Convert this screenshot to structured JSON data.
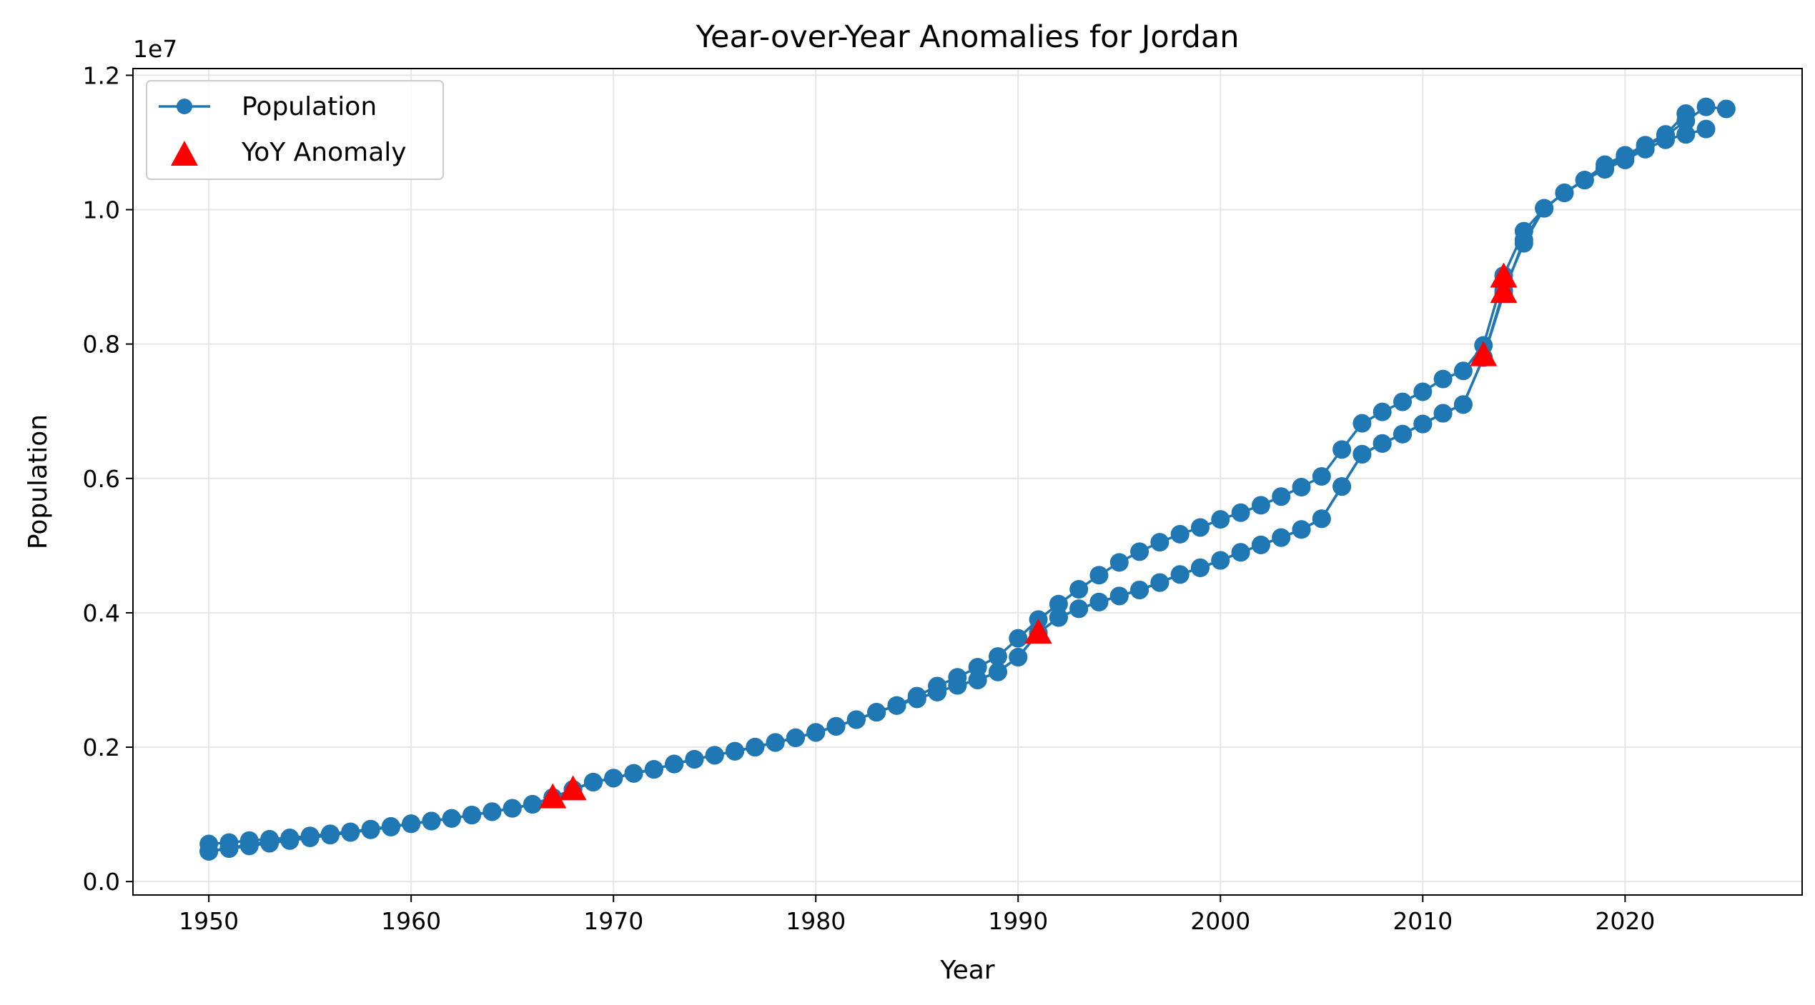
{
  "chart_data": {
    "type": "line",
    "title": "Year-over-Year Anomalies for Jordan",
    "xlabel": "Year",
    "ylabel": "Population",
    "y_offset_label": "1e7",
    "xlim": [
      1946.25,
      2028.75
    ],
    "ylim": [
      -0.02,
      1.21
    ],
    "x_ticks": [
      1950,
      1960,
      1970,
      1980,
      1990,
      2000,
      2010,
      2020
    ],
    "y_ticks": [
      0.0,
      0.2,
      0.4,
      0.6,
      0.8,
      1.0,
      1.2
    ],
    "y_tick_labels": [
      "0.0",
      "0.2",
      "0.4",
      "0.6",
      "0.8",
      "1.0",
      "1.2"
    ],
    "grid": true,
    "legend_position": "top-left",
    "colors": {
      "line": "#1f77b4",
      "anomaly": "#ff0000"
    },
    "series": [
      {
        "name": "Population",
        "kind": "line-marker",
        "segments": [
          {
            "x": [
              1950,
              1951,
              1952,
              1953,
              1954,
              1955,
              1956,
              1957,
              1958,
              1959,
              1960,
              1961,
              1962,
              1963,
              1964,
              1965,
              1966,
              1967,
              1968,
              1969,
              1970,
              1971,
              1972,
              1973,
              1974,
              1975,
              1976,
              1977,
              1978,
              1979,
              1980,
              1981,
              1982,
              1983,
              1984,
              1985,
              1986,
              1987,
              1988,
              1989,
              1990,
              1991,
              1992,
              1993,
              1994,
              1995,
              1996,
              1997,
              1998,
              1999,
              2000,
              2001,
              2002,
              2003,
              2004,
              2005,
              2006,
              2007,
              2008,
              2009,
              2010,
              2011,
              2012,
              2013,
              2014,
              2015,
              2016,
              2017,
              2018,
              2019,
              2020,
              2021,
              2022,
              2023,
              2024
            ],
            "y": [
              0.045,
              0.05,
              0.055,
              0.06,
              0.064,
              0.067,
              0.071,
              0.074,
              0.078,
              0.082,
              0.086,
              0.09,
              0.094,
              0.099,
              0.104,
              0.109,
              0.115,
              0.125,
              0.137,
              0.148,
              0.154,
              0.161,
              0.167,
              0.175,
              0.182,
              0.188,
              0.194,
              0.2,
              0.207,
              0.214,
              0.222,
              0.231,
              0.241,
              0.252,
              0.262,
              0.272,
              0.282,
              0.292,
              0.3,
              0.312,
              0.334,
              0.37,
              0.393,
              0.406,
              0.416,
              0.425,
              0.434,
              0.445,
              0.457,
              0.467,
              0.478,
              0.49,
              0.501,
              0.512,
              0.524,
              0.54,
              0.588,
              0.636,
              0.652,
              0.666,
              0.681,
              0.697,
              0.71,
              0.78,
              0.88,
              0.95,
              1.002,
              1.025,
              1.044,
              1.06,
              1.074,
              1.09,
              1.104,
              1.112,
              1.12
            ]
          },
          {
            "x": [
              1950,
              1951,
              1952,
              1953,
              1954,
              1955,
              1956,
              1957,
              1958,
              1959,
              1960,
              1961,
              1962,
              1963,
              1964,
              1965,
              1966,
              1967,
              1968,
              1969,
              1970,
              1971,
              1972,
              1973,
              1974,
              1975,
              1976,
              1977,
              1978,
              1979,
              1980,
              1981,
              1982,
              1983,
              1984,
              1985,
              1986,
              1987,
              1988,
              1989,
              1990,
              1991,
              1992,
              1993,
              1994,
              1995,
              1996,
              1997,
              1998,
              1999,
              2000,
              2001,
              2002,
              2003,
              2004,
              2005,
              2006,
              2007,
              2008,
              2009,
              2010,
              2011,
              2012,
              2013,
              2014,
              2015,
              2016,
              2017,
              2018,
              2019,
              2020,
              2021,
              2022,
              2023
            ],
            "y": [
              0.056,
              0.058,
              0.061,
              0.063,
              0.065,
              0.068,
              0.071,
              0.074,
              0.078,
              0.082,
              0.086,
              0.09,
              0.094,
              0.099,
              0.104,
              0.109,
              0.115,
              0.125,
              0.137,
              0.148,
              0.154,
              0.161,
              0.167,
              0.175,
              0.182,
              0.188,
              0.194,
              0.2,
              0.207,
              0.214,
              0.222,
              0.231,
              0.241,
              0.252,
              0.262,
              0.276,
              0.291,
              0.304,
              0.319,
              0.335,
              0.362,
              0.39,
              0.413,
              0.435,
              0.456,
              0.475,
              0.491,
              0.505,
              0.517,
              0.527,
              0.539,
              0.549,
              0.56,
              0.573,
              0.587,
              0.603,
              0.643,
              0.682,
              0.699,
              0.714,
              0.729,
              0.748,
              0.76,
              0.798,
              0.902,
              0.968,
              1.002,
              1.025,
              1.044,
              1.067,
              1.081,
              1.096,
              1.112,
              1.143
            ]
          },
          {
            "x": [
              1950,
              1951,
              1952,
              1953,
              1954,
              1955,
              1956,
              1957,
              1958,
              1959,
              1960,
              1961,
              1962,
              1963,
              1964,
              1965,
              1966,
              1967,
              1968,
              1969,
              1970,
              1971,
              1972,
              1973,
              1974,
              1975,
              1976,
              1977,
              1978,
              1979,
              1980,
              1981,
              1982,
              1983,
              1984,
              1985,
              1986,
              1987,
              1988,
              1989,
              1990,
              1991,
              1992,
              1993,
              1994,
              1995,
              1996,
              1997,
              1998,
              1999,
              2000,
              2001,
              2002,
              2003,
              2004,
              2005,
              2006,
              2007,
              2008,
              2009,
              2010,
              2011,
              2012,
              2013,
              2014,
              2015,
              2016,
              2017,
              2018,
              2019,
              2020,
              2021,
              2022,
              2023,
              2024,
              2025
            ],
            "y": [
              0.045,
              0.049,
              0.053,
              0.057,
              0.061,
              0.065,
              0.069,
              0.073,
              0.077,
              0.081,
              0.086,
              0.09,
              0.094,
              0.099,
              0.104,
              0.109,
              0.115,
              0.125,
              0.137,
              0.148,
              0.154,
              0.161,
              0.167,
              0.175,
              0.182,
              0.188,
              0.194,
              0.2,
              0.207,
              0.214,
              0.222,
              0.231,
              0.241,
              0.252,
              0.262,
              0.272,
              0.282,
              0.292,
              0.3,
              0.312,
              0.334,
              0.37,
              0.393,
              0.406,
              0.416,
              0.425,
              0.434,
              0.445,
              0.457,
              0.467,
              0.478,
              0.49,
              0.501,
              0.512,
              0.524,
              0.54,
              0.588,
              0.636,
              0.652,
              0.666,
              0.681,
              0.697,
              0.71,
              0.78,
              0.875,
              0.955,
              1.002,
              1.025,
              1.044,
              1.062,
              1.078,
              1.094,
              1.11,
              1.132,
              1.153,
              1.15
            ]
          }
        ]
      },
      {
        "name": "YoY Anomaly",
        "kind": "scatter",
        "marker": "triangle",
        "x": [
          1967,
          1968,
          1991,
          2013,
          2014,
          2014
        ],
        "y": [
          0.125,
          0.137,
          0.37,
          0.783,
          0.877,
          0.9
        ]
      }
    ]
  }
}
